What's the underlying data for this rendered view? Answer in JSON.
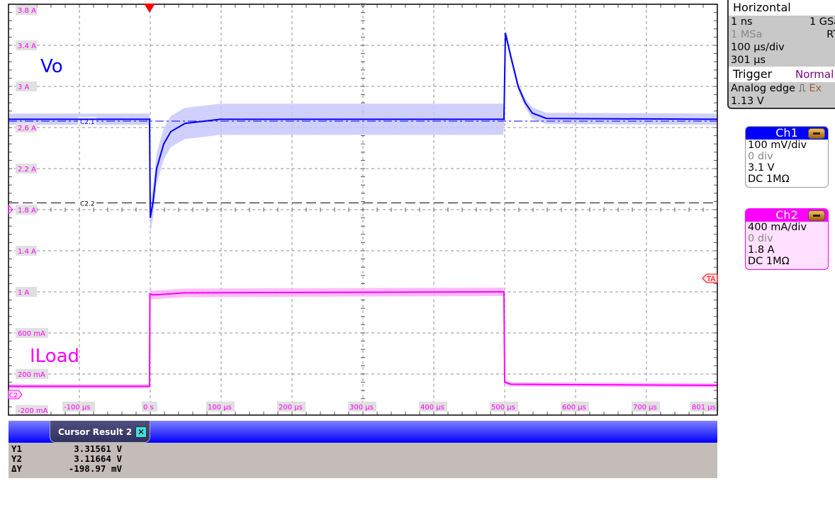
{
  "colors": {
    "ch1": "#0000ff",
    "ch2": "#ff00ff",
    "ch1_band": "#c8c8ff",
    "ch2_band": "#ffb0ff",
    "trigger": "#ff0000",
    "grid": "#909090"
  },
  "labels": {
    "vo": "Vo",
    "iload": "ILoad"
  },
  "markers": {
    "c21": "C2.1",
    "c22": "C2.2",
    "ch2_ground": "C2",
    "trigger_level": "TA"
  },
  "horizontal": {
    "title": "Horizontal",
    "resolution": "1 ns",
    "sample_rate": "1 GSa/",
    "record_length": "1 MSa",
    "mode": "RT",
    "time_scale": "100 µs/div",
    "position": "301 µs"
  },
  "trigger": {
    "title": "Trigger",
    "mode": "Normal",
    "type": "Analog edge",
    "edge_icon": "rising-edge-icon",
    "source": "Ex",
    "level": "1.13 V"
  },
  "channels": [
    {
      "name": "Ch1",
      "scale": "100 mV/div",
      "offset_div": "0 div",
      "offset": "3.1 V",
      "coupling": "DC 1MΩ"
    },
    {
      "name": "Ch2",
      "scale": "400 mA/div",
      "offset_div": "0 div",
      "offset": "1.8 A",
      "coupling": "DC 1MΩ"
    }
  ],
  "cursor_result": {
    "title": "Cursor Result 2",
    "rows": [
      {
        "label": "Y1",
        "value": "3.31561 V"
      },
      {
        "label": "Y2",
        "value": "3.11664 V"
      },
      {
        "label": "ΔY",
        "value": "-198.97 mV"
      }
    ]
  },
  "chart_data": {
    "type": "line",
    "xlim": [
      -199,
      801
    ],
    "x_unit": "µs",
    "ylim": [
      -0.2,
      3.8
    ],
    "y_unit": "A",
    "grid": true,
    "x_ticks": [
      -100,
      0,
      100,
      200,
      300,
      400,
      500,
      600,
      700,
      801
    ],
    "x_tick_labels": [
      "-100 µs",
      "0 s",
      "100 µs",
      "200 µs",
      "300 µs",
      "400 µs",
      "500 µs",
      "600 µs",
      "700 µs",
      "801 µs"
    ],
    "y_ticks": [
      3.8,
      3.4,
      3.0,
      2.6,
      2.2,
      1.8,
      1.4,
      1.0,
      0.6,
      0.2,
      -0.2
    ],
    "y_tick_labels": [
      "3.8 A",
      "3.4 A",
      "3 A",
      "2.6 A",
      "2.2 A",
      "1.8 A",
      "1.4 A",
      "1 A",
      "600 mA",
      "200 mA",
      "-200 mA"
    ],
    "cursors_v": [
      3.31561,
      3.11664
    ],
    "series": [
      {
        "name": "Vo",
        "unit": "V",
        "x": [
          -199,
          0,
          1,
          5,
          10,
          20,
          30,
          50,
          100,
          499,
          500,
          502,
          510,
          520,
          530,
          540,
          560,
          801
        ],
        "y": [
          3.32,
          3.32,
          3.08,
          3.12,
          3.2,
          3.26,
          3.29,
          3.31,
          3.32,
          3.32,
          3.32,
          3.53,
          3.47,
          3.4,
          3.36,
          3.335,
          3.322,
          3.32
        ]
      },
      {
        "name": "ILoad",
        "unit": "A",
        "x": [
          -199,
          0,
          0.5,
          5,
          50,
          499,
          500,
          501,
          510,
          801
        ],
        "y": [
          0.08,
          0.08,
          0.98,
          0.97,
          0.99,
          1.0,
          1.0,
          0.12,
          0.1,
          0.09
        ]
      }
    ]
  }
}
